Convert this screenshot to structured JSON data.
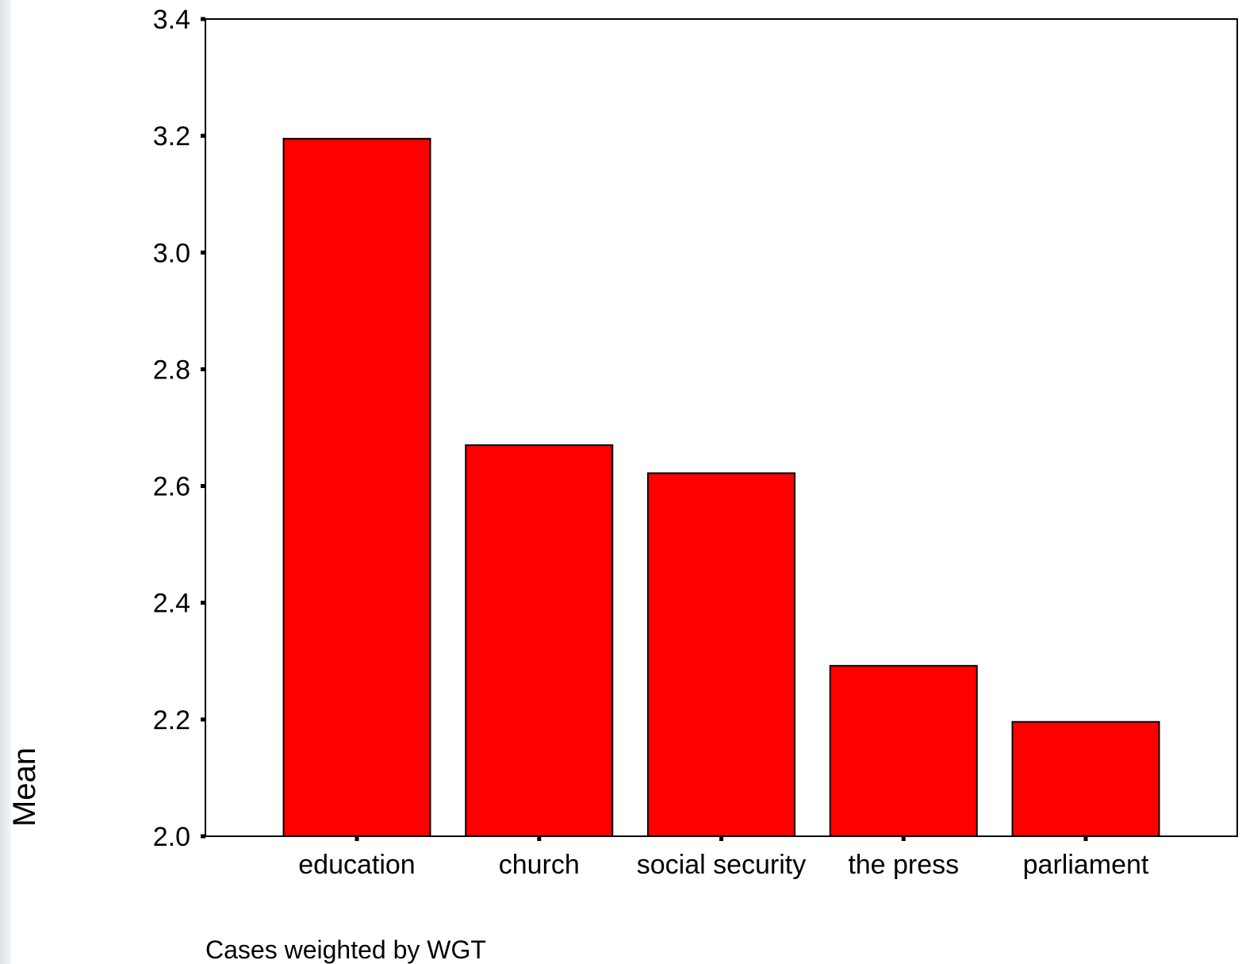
{
  "chart_data": {
    "type": "bar",
    "categories": [
      "education",
      "church",
      "social security",
      "the press",
      "parliament"
    ],
    "values": [
      3.195,
      2.67,
      2.622,
      2.292,
      2.196
    ],
    "ylabel": "Mean",
    "xlabel": "",
    "ylim": [
      2.0,
      3.4
    ],
    "yticks": [
      2.0,
      2.2,
      2.4,
      2.6,
      2.8,
      3.0,
      3.2,
      3.4
    ],
    "ytick_labels": [
      "2.0",
      "2.2",
      "2.4",
      "2.6",
      "2.8",
      "3.0",
      "3.2",
      "3.4"
    ],
    "note": "Cases weighted by WGT",
    "grid": false,
    "legend": "none",
    "bar_color": "#ff0000",
    "outline_color": "#000000"
  }
}
